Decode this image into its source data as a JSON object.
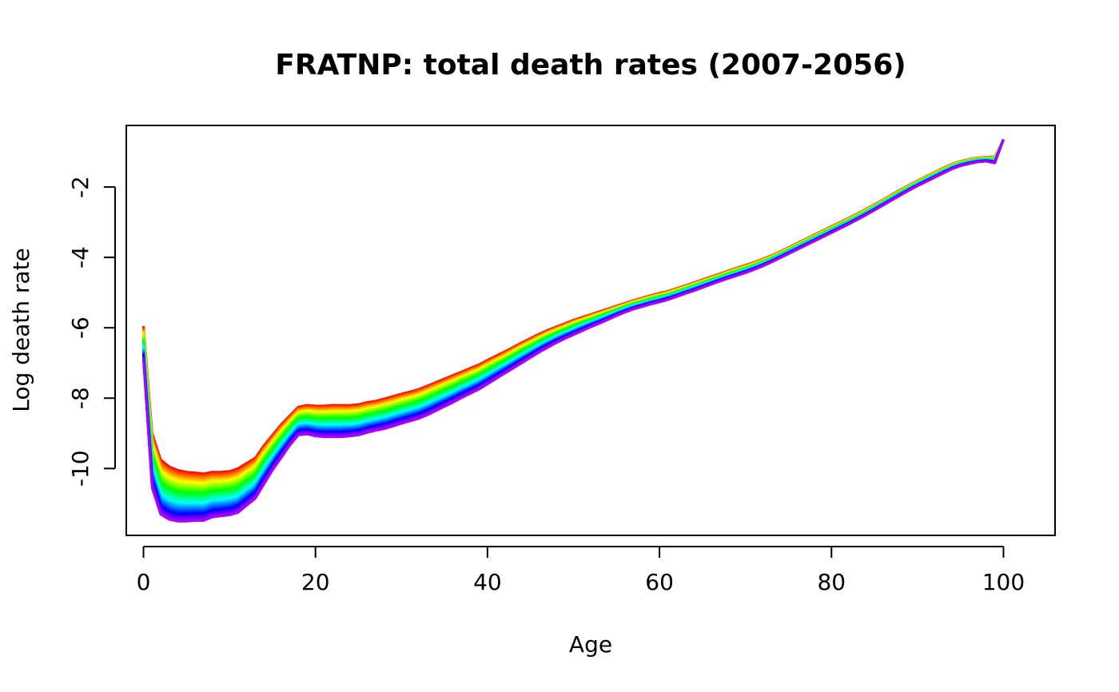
{
  "chart_data": {
    "type": "line",
    "title": "FRATNP: total death rates  (2007-2056)",
    "xlabel": "Age",
    "ylabel": "Log death rate",
    "xlim": [
      -2,
      106
    ],
    "ylim": [
      -11.9,
      -0.25
    ],
    "xticks": [
      0,
      20,
      40,
      60,
      80,
      100
    ],
    "xtick_labels": [
      "0",
      "20",
      "40",
      "60",
      "80",
      "100"
    ],
    "yticks": [
      -10,
      -8,
      -6,
      -4,
      -2
    ],
    "ytick_labels": [
      "-10",
      "-8",
      "-6",
      "-4",
      "-2"
    ],
    "grid": false,
    "legend": "none",
    "series_count": 50,
    "color_scale": "rainbow: first year red, through orange, yellow, green, cyan, blue, to last year violet",
    "x": [
      0,
      1,
      2,
      3,
      4,
      5,
      6,
      7,
      8,
      9,
      10,
      11,
      12,
      13,
      14,
      15,
      16,
      17,
      18,
      19,
      20,
      21,
      22,
      23,
      24,
      25,
      26,
      27,
      28,
      29,
      30,
      31,
      32,
      33,
      34,
      35,
      36,
      37,
      38,
      39,
      40,
      41,
      42,
      43,
      44,
      45,
      46,
      47,
      48,
      49,
      50,
      51,
      52,
      53,
      54,
      55,
      56,
      57,
      58,
      59,
      60,
      61,
      62,
      63,
      64,
      65,
      66,
      67,
      68,
      69,
      70,
      71,
      72,
      73,
      74,
      75,
      76,
      77,
      78,
      79,
      80,
      81,
      82,
      83,
      84,
      85,
      86,
      87,
      88,
      89,
      90,
      91,
      92,
      93,
      94,
      95,
      96,
      97,
      98,
      99,
      100
    ],
    "series": [
      {
        "values": [
          -5.95,
          -9.0,
          -9.75,
          -9.95,
          -10.05,
          -10.1,
          -10.12,
          -10.15,
          -10.1,
          -10.1,
          -10.08,
          -10.0,
          -9.85,
          -9.7,
          -9.35,
          -9.05,
          -8.75,
          -8.5,
          -8.25,
          -8.2,
          -8.22,
          -8.22,
          -8.2,
          -8.2,
          -8.2,
          -8.18,
          -8.12,
          -8.08,
          -8.02,
          -7.95,
          -7.88,
          -7.82,
          -7.75,
          -7.65,
          -7.55,
          -7.45,
          -7.35,
          -7.25,
          -7.15,
          -7.05,
          -6.92,
          -6.8,
          -6.68,
          -6.55,
          -6.42,
          -6.3,
          -6.18,
          -6.07,
          -5.97,
          -5.88,
          -5.78,
          -5.7,
          -5.62,
          -5.54,
          -5.46,
          -5.38,
          -5.3,
          -5.22,
          -5.15,
          -5.08,
          -5.02,
          -4.96,
          -4.88,
          -4.8,
          -4.72,
          -4.63,
          -4.55,
          -4.47,
          -4.38,
          -4.3,
          -4.22,
          -4.14,
          -4.05,
          -3.95,
          -3.84,
          -3.72,
          -3.6,
          -3.48,
          -3.36,
          -3.24,
          -3.12,
          -3.0,
          -2.88,
          -2.76,
          -2.63,
          -2.5,
          -2.36,
          -2.22,
          -2.08,
          -1.95,
          -1.82,
          -1.7,
          -1.58,
          -1.46,
          -1.35,
          -1.27,
          -1.21,
          -1.17,
          -1.15,
          -1.14,
          -0.65
        ]
      },
      {
        "values": [
          -6.9,
          -10.55,
          -11.3,
          -11.45,
          -11.5,
          -11.5,
          -11.48,
          -11.48,
          -11.38,
          -11.35,
          -11.32,
          -11.25,
          -11.05,
          -10.85,
          -10.45,
          -10.05,
          -9.7,
          -9.35,
          -9.05,
          -9.02,
          -9.08,
          -9.1,
          -9.1,
          -9.1,
          -9.08,
          -9.05,
          -8.98,
          -8.92,
          -8.87,
          -8.8,
          -8.72,
          -8.65,
          -8.58,
          -8.48,
          -8.36,
          -8.24,
          -8.12,
          -7.99,
          -7.87,
          -7.75,
          -7.6,
          -7.45,
          -7.3,
          -7.15,
          -7.0,
          -6.85,
          -6.7,
          -6.56,
          -6.43,
          -6.31,
          -6.2,
          -6.09,
          -5.98,
          -5.88,
          -5.77,
          -5.66,
          -5.56,
          -5.47,
          -5.4,
          -5.33,
          -5.27,
          -5.2,
          -5.12,
          -5.03,
          -4.95,
          -4.86,
          -4.77,
          -4.68,
          -4.6,
          -4.52,
          -4.44,
          -4.35,
          -4.25,
          -4.14,
          -4.02,
          -3.9,
          -3.78,
          -3.66,
          -3.54,
          -3.42,
          -3.3,
          -3.18,
          -3.06,
          -2.93,
          -2.8,
          -2.66,
          -2.52,
          -2.38,
          -2.24,
          -2.1,
          -1.97,
          -1.85,
          -1.73,
          -1.61,
          -1.49,
          -1.4,
          -1.34,
          -1.29,
          -1.27,
          -1.32,
          -0.65
        ]
      }
    ]
  }
}
